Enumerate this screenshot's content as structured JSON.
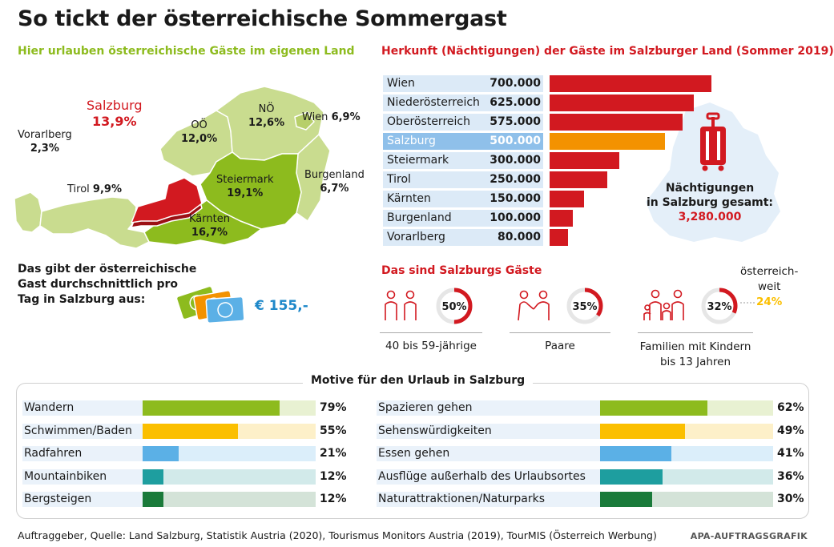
{
  "title": "So tickt der österreichische Sommergast",
  "left_heading": "Hier urlauben österreichische Gäste im eigenen Land",
  "right_heading": "Herkunft (Nächtigungen) der Gäste im Salzburger Land (Sommer 2019)",
  "map": {
    "salzburg_name": "Salzburg",
    "salzburg_pct": "13,9%",
    "vorarlberg_name": "Vorarlberg",
    "vorarlberg_pct": "2,3%",
    "tirol_name": "Tirol",
    "tirol_pct": "9,9%",
    "ooe_name": "OÖ",
    "ooe_pct": "12,0%",
    "noe_name": "NÖ",
    "noe_pct": "12,6%",
    "wien_name": "Wien",
    "wien_pct": "6,9%",
    "steiermark_name": "Steiermark",
    "steiermark_pct": "19,1%",
    "burgenland_name": "Burgenland",
    "burgenland_pct": "6,7%",
    "kaernten_name": "Kärnten",
    "kaernten_pct": "16,7%"
  },
  "total": {
    "label1": "Nächtigungen",
    "label2": "in Salzburg gesamt:",
    "value": "3,280.000"
  },
  "spend": {
    "text1": "Das gibt der österreichische",
    "text2": "Gast durchschnittlich pro",
    "text3": "Tag in Salzburg aus:",
    "value": "€ 155,-"
  },
  "guests": {
    "heading": "Das sind Salzburgs Gäste",
    "groups": [
      {
        "pct": "50%",
        "value": 50,
        "caption1": "40 bis 59-jährige",
        "caption2": ""
      },
      {
        "pct": "35%",
        "value": 35,
        "caption1": "Paare",
        "caption2": ""
      },
      {
        "pct": "32%",
        "value": 32,
        "caption1": "Familien mit Kindern",
        "caption2": "bis 13 Jahren"
      }
    ],
    "austria_label1": "österreich-",
    "austria_label2": "weit",
    "austria_pct": "24%"
  },
  "motives_heading": "Motive für den Urlaub in Salzburg",
  "footer": "Auftraggeber, Quelle: Land Salzburg, Statistik Austria (2020), Tourismus Monitors Austria (2019), TourMIS (Österreich Werbung)",
  "credit": "APA-AUFTRAGSGRAFIK",
  "colors": {
    "red": "#d21920",
    "orange": "#f39200",
    "green": "#8dbb1e",
    "yellow": "#fbbf00",
    "lightblue": "#5bb0e6",
    "teal": "#1e9e9f",
    "darkgreen": "#1a7a3a",
    "blue": "#1e88c9"
  },
  "chart_data": [
    {
      "type": "bar",
      "title": "Herkunft (Nächtigungen) der Gäste im Salzburger Land (Sommer 2019)",
      "categories": [
        "Wien",
        "Niederösterreich",
        "Oberösterreich",
        "Salzburg",
        "Steiermark",
        "Tirol",
        "Kärnten",
        "Burgenland",
        "Vorarlberg"
      ],
      "values": [
        700000,
        625000,
        575000,
        500000,
        300000,
        250000,
        150000,
        100000,
        80000
      ],
      "labels": [
        "700.000",
        "625.000",
        "575.000",
        "500.000",
        "300.000",
        "250.000",
        "150.000",
        "100.000",
        "80.000"
      ],
      "highlight": "Salzburg",
      "xlim": [
        0,
        700000
      ]
    },
    {
      "type": "bar",
      "title": "Motive für den Urlaub in Salzburg",
      "left": [
        {
          "name": "Wandern",
          "value": 79,
          "label": "79%",
          "color": "#8dbb1e",
          "bg": "#e8f1d2"
        },
        {
          "name": "Schwimmen/Baden",
          "value": 55,
          "label": "55%",
          "color": "#fbbf00",
          "bg": "#fdf0c9"
        },
        {
          "name": "Radfahren",
          "value": 21,
          "label": "21%",
          "color": "#5bb0e6",
          "bg": "#dbeefa"
        },
        {
          "name": "Mountainbiken",
          "value": 12,
          "label": "12%",
          "color": "#1e9e9f",
          "bg": "#d2eaea"
        },
        {
          "name": "Bergsteigen",
          "value": 12,
          "label": "12%",
          "color": "#1a7a3a",
          "bg": "#d4e3d8"
        }
      ],
      "right": [
        {
          "name": "Spazieren gehen",
          "value": 62,
          "label": "62%",
          "color": "#8dbb1e",
          "bg": "#e8f1d2"
        },
        {
          "name": "Sehenswürdigkeiten",
          "value": 49,
          "label": "49%",
          "color": "#fbbf00",
          "bg": "#fdf0c9"
        },
        {
          "name": "Essen gehen",
          "value": 41,
          "label": "41%",
          "color": "#5bb0e6",
          "bg": "#dbeefa"
        },
        {
          "name": "Ausflüge außerhalb des Urlaubsortes",
          "value": 36,
          "label": "36%",
          "color": "#1e9e9f",
          "bg": "#d2eaea"
        },
        {
          "name": "Naturattraktionen/Naturparks",
          "value": 30,
          "label": "30%",
          "color": "#1a7a3a",
          "bg": "#d4e3d8"
        }
      ],
      "xlim": [
        0,
        100
      ]
    }
  ]
}
